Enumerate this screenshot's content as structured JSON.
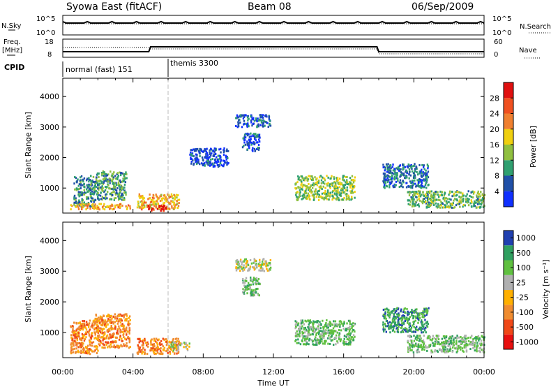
{
  "header": {
    "station": "Syowa East (fitACF)",
    "beam": "Beam 08",
    "date": "06/Sep/2009"
  },
  "noise_panel": {
    "left_label": "N.Sky",
    "left_top_tick": "10^5",
    "left_bottom_tick": "10^0",
    "right_label": "N.Search",
    "right_top_tick": "10^5",
    "right_bottom_tick": "10^0"
  },
  "freq_panel": {
    "left_label_1": "Freq.",
    "left_label_2": "[MHz]",
    "left_top_tick": "18",
    "left_bottom_tick": "8",
    "right_label": "Nave",
    "right_top_tick": "60",
    "right_bottom_tick": "0"
  },
  "cpid_panel": {
    "label": "CPID",
    "segments": [
      {
        "text": "normal (fast) 151",
        "start_hour": 0
      },
      {
        "text": "themis 3300",
        "start_hour": 6
      }
    ]
  },
  "x_axis": {
    "label": "Time UT",
    "ticks": [
      "00:00",
      "04:00",
      "08:00",
      "12:00",
      "16:00",
      "20:00",
      "00:00"
    ]
  },
  "colors": {
    "power_scale": [
      "#1030ff",
      "#2050a8",
      "#30a070",
      "#90c040",
      "#f0d010",
      "#f08030",
      "#f05020",
      "#e01010"
    ],
    "velocity_scale": [
      "#e81010",
      "#f04818",
      "#f08c30",
      "#ffb000",
      "#b0b0b0",
      "#60c040",
      "#30a060",
      "#2040b0"
    ]
  },
  "chart_data": [
    {
      "type": "heatmap",
      "name": "power",
      "ylabel": "Slant Range [km]",
      "xlabel": "Time UT",
      "xlim_hours": [
        0,
        24
      ],
      "ylim_km": [
        180,
        4600
      ],
      "yticks": [
        "1000",
        "2000",
        "3000",
        "4000"
      ],
      "colorbar": {
        "label": "Power [dB]",
        "ticks": [
          "4",
          "8",
          "12",
          "16",
          "20",
          "24",
          "28"
        ],
        "range": [
          0,
          32
        ]
      },
      "regions": [
        {
          "t": [
            0.6,
            1.8
          ],
          "r": [
            380,
            1400
          ],
          "v": 9
        },
        {
          "t": [
            1.8,
            3.6
          ],
          "r": [
            600,
            1550
          ],
          "v": 11
        },
        {
          "t": [
            0.4,
            3.8
          ],
          "r": [
            300,
            480
          ],
          "v": 20
        },
        {
          "t": [
            4.2,
            6.6
          ],
          "r": [
            300,
            800
          ],
          "v": 20
        },
        {
          "t": [
            4.8,
            6.0
          ],
          "r": [
            240,
            420
          ],
          "v": 27
        },
        {
          "t": [
            9.8,
            11.8
          ],
          "r": [
            3000,
            3400
          ],
          "v": 5
        },
        {
          "t": [
            10.2,
            11.2
          ],
          "r": [
            2200,
            2800
          ],
          "v": 5
        },
        {
          "t": [
            7.2,
            9.4
          ],
          "r": [
            1700,
            2300
          ],
          "v": 4
        },
        {
          "t": [
            13.2,
            16.6
          ],
          "r": [
            600,
            1400
          ],
          "v": 14
        },
        {
          "t": [
            18.2,
            20.8
          ],
          "r": [
            1000,
            1800
          ],
          "v": 7
        },
        {
          "t": [
            19.6,
            24.0
          ],
          "r": [
            350,
            900
          ],
          "v": 12
        }
      ]
    },
    {
      "type": "heatmap",
      "name": "velocity",
      "ylabel": "Slant Range [km]",
      "xlabel": "Time UT",
      "xlim_hours": [
        0,
        24
      ],
      "ylim_km": [
        180,
        4600
      ],
      "yticks": [
        "1000",
        "2000",
        "3000",
        "4000"
      ],
      "colorbar": {
        "label": "Velocity [m s⁻¹]",
        "ticks": [
          "-1000",
          "-500",
          "-100",
          "-25",
          "25",
          "100",
          "500",
          "1000"
        ]
      },
      "regions": [
        {
          "t": [
            0.4,
            2.0
          ],
          "r": [
            300,
            1400
          ],
          "c": 2
        },
        {
          "t": [
            1.8,
            3.8
          ],
          "r": [
            500,
            1600
          ],
          "c": 2
        },
        {
          "t": [
            4.2,
            6.6
          ],
          "r": [
            300,
            800
          ],
          "c": 2
        },
        {
          "t": [
            6.0,
            7.2
          ],
          "r": [
            400,
            700
          ],
          "c": 4
        },
        {
          "t": [
            9.8,
            11.8
          ],
          "r": [
            3000,
            3400
          ],
          "c": 4
        },
        {
          "t": [
            10.2,
            11.2
          ],
          "r": [
            2200,
            2800
          ],
          "c": 5
        },
        {
          "t": [
            13.2,
            16.6
          ],
          "r": [
            600,
            1400
          ],
          "c": 5
        },
        {
          "t": [
            18.2,
            20.8
          ],
          "r": [
            1000,
            1800
          ],
          "c": 6
        },
        {
          "t": [
            19.6,
            24.0
          ],
          "r": [
            350,
            900
          ],
          "c": 5
        }
      ]
    }
  ]
}
